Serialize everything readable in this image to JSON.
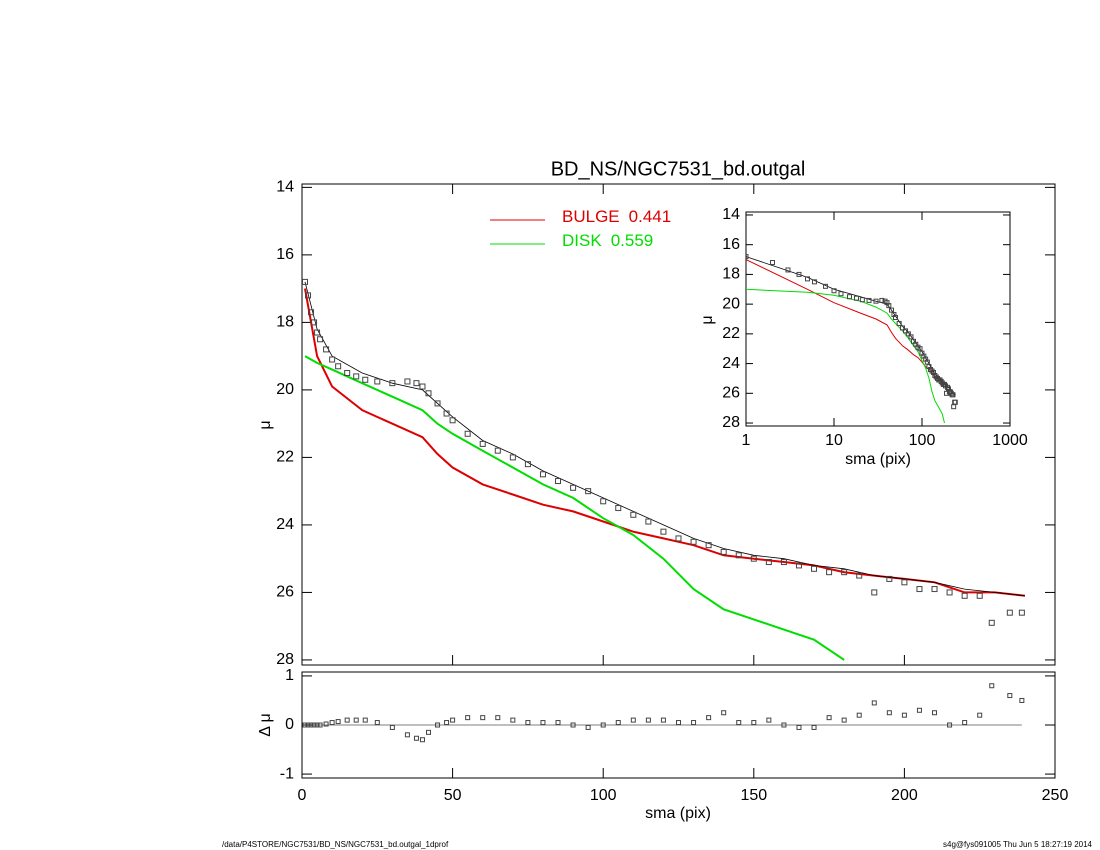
{
  "chart_data": [
    {
      "type": "line",
      "title": "BD_NS/NGC7531_bd.outgal",
      "ylabel": "μ",
      "xlim": [
        0,
        250
      ],
      "xticks": [
        0,
        50,
        100,
        150,
        200,
        250
      ],
      "ylim": [
        28.15,
        13.9
      ],
      "yticks": [
        14,
        16,
        18,
        20,
        22,
        24,
        26,
        28
      ],
      "points": {
        "color": "#444444",
        "x": [
          1,
          2,
          3,
          4,
          5,
          6,
          8,
          10,
          12,
          15,
          18,
          21,
          25,
          30,
          35,
          38,
          40,
          42,
          45,
          48,
          50,
          55,
          60,
          65,
          70,
          75,
          80,
          85,
          90,
          95,
          100,
          105,
          110,
          115,
          120,
          125,
          130,
          135,
          140,
          145,
          150,
          155,
          160,
          165,
          170,
          175,
          180,
          185,
          190,
          195,
          200,
          205,
          210,
          215,
          220,
          225,
          229,
          235,
          239
        ],
        "values": [
          16.8,
          17.2,
          17.7,
          18.0,
          18.3,
          18.5,
          18.8,
          19.1,
          19.3,
          19.5,
          19.6,
          19.7,
          19.75,
          19.8,
          19.75,
          19.8,
          19.9,
          20.1,
          20.4,
          20.7,
          20.9,
          21.3,
          21.6,
          21.8,
          22.0,
          22.2,
          22.5,
          22.7,
          22.9,
          23.0,
          23.3,
          23.5,
          23.7,
          23.9,
          24.2,
          24.4,
          24.5,
          24.6,
          24.8,
          24.9,
          25.0,
          25.1,
          25.1,
          25.2,
          25.3,
          25.4,
          25.4,
          25.5,
          26.0,
          25.6,
          25.7,
          25.9,
          25.9,
          26.0,
          26.1,
          26.1,
          26.9,
          26.6,
          26.6
        ]
      },
      "model": {
        "color": "#000000",
        "x": [
          1,
          5,
          10,
          20,
          30,
          40,
          45,
          50,
          60,
          70,
          80,
          90,
          100,
          110,
          120,
          130,
          140,
          150,
          160,
          170,
          180,
          190,
          200,
          210,
          220,
          230,
          240
        ],
        "values": [
          16.8,
          18.2,
          19.0,
          19.5,
          19.8,
          20.0,
          20.4,
          20.8,
          21.5,
          21.9,
          22.4,
          22.8,
          23.2,
          23.6,
          24.0,
          24.4,
          24.7,
          24.9,
          25.0,
          25.2,
          25.3,
          25.5,
          25.6,
          25.7,
          25.9,
          26.0,
          26.1
        ]
      },
      "series": [
        {
          "name": "BULGE",
          "fraction": 0.441,
          "color": "#dd0000",
          "x": [
            1,
            5,
            10,
            20,
            30,
            40,
            45,
            50,
            60,
            70,
            80,
            90,
            100,
            110,
            120,
            130,
            140,
            150,
            160,
            170,
            180,
            190,
            200,
            210,
            220,
            230,
            240
          ],
          "values": [
            17.0,
            19.0,
            19.9,
            20.6,
            21.0,
            21.4,
            21.9,
            22.3,
            22.8,
            23.1,
            23.4,
            23.6,
            23.9,
            24.2,
            24.4,
            24.6,
            24.9,
            25.0,
            25.1,
            25.2,
            25.4,
            25.5,
            25.6,
            25.7,
            26.0,
            26.0,
            26.1
          ]
        },
        {
          "name": "DISK",
          "fraction": 0.559,
          "color": "#00dd00",
          "x": [
            1,
            5,
            10,
            20,
            30,
            40,
            45,
            50,
            60,
            70,
            80,
            90,
            100,
            110,
            120,
            130,
            140,
            150,
            160,
            170,
            180
          ],
          "values": [
            19.0,
            19.2,
            19.4,
            19.8,
            20.2,
            20.6,
            21.0,
            21.3,
            21.8,
            22.3,
            22.8,
            23.2,
            23.8,
            24.3,
            25.0,
            25.9,
            26.5,
            26.8,
            27.1,
            27.4,
            28.0
          ]
        }
      ]
    },
    {
      "type": "scatter",
      "ylabel": "Δ μ",
      "xlabel": "sma (pix)",
      "xlim": [
        0,
        250
      ],
      "xticks": [
        0,
        50,
        100,
        150,
        200,
        250
      ],
      "ylim": [
        -1.08,
        1.08
      ],
      "yticks": [
        -1,
        0,
        1
      ],
      "values": [
        0,
        0,
        0,
        0,
        0,
        0,
        0.02,
        0.05,
        0.07,
        0.1,
        0.1,
        0.1,
        0.05,
        -0.05,
        -0.2,
        -0.27,
        -0.3,
        -0.15,
        0,
        0.05,
        0.1,
        0.15,
        0.15,
        0.15,
        0.1,
        0.05,
        0.05,
        0.05,
        0,
        -0.05,
        0,
        0.05,
        0.1,
        0.1,
        0.1,
        0.05,
        0.05,
        0.15,
        0.25,
        0.05,
        0.05,
        0.1,
        0,
        -0.05,
        -0.05,
        0.15,
        0.1,
        0.2,
        0.45,
        0.25,
        0.2,
        0.3,
        0.25,
        0,
        0.05,
        0.2,
        0.8,
        0.6,
        0.5
      ]
    },
    {
      "type": "inset",
      "xlabel": "sma (pix)",
      "ylabel": "μ",
      "log_x": true,
      "xlim": [
        1,
        1000
      ],
      "xticks": [
        1,
        10,
        100,
        1000
      ],
      "ylim": [
        28.2,
        13.8
      ],
      "yticks": [
        14,
        16,
        18,
        20,
        22,
        24,
        26,
        28
      ]
    }
  ],
  "footer": {
    "left": "/data/P4STORE/NGC7531/BD_NS/NGC7531_bd.outgal_1dprof",
    "right": "s4g@fys091005  Thu Jun  5 18:27:19 2014"
  }
}
